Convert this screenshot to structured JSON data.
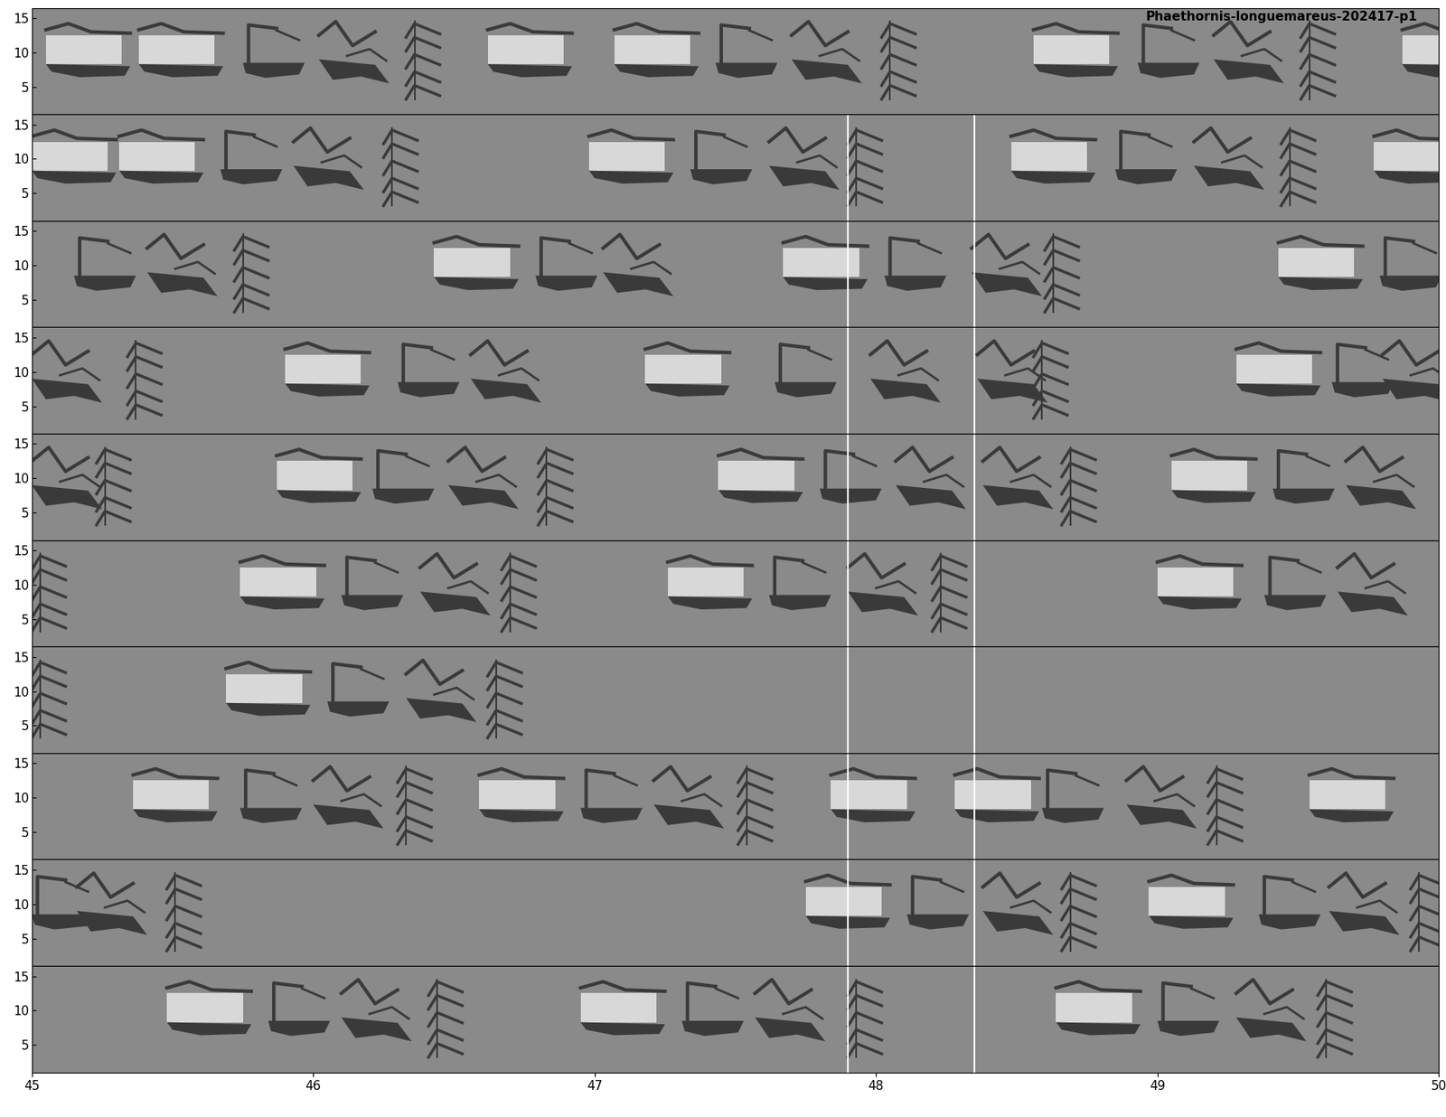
{
  "chart_data": {
    "type": "spectrogram",
    "title": "Phaethornis-longuemareus-202417-p1",
    "xlim": [
      45,
      50
    ],
    "xticks": [
      45,
      46,
      47,
      48,
      49,
      50
    ],
    "ylim": [
      1,
      16.5
    ],
    "yticks": [
      5,
      10,
      15
    ],
    "rows": [
      {
        "box": [
          45.05,
          45.38,
          46.62,
          47.07,
          48.56,
          49.87
        ],
        "hook": [
          45.75,
          47.43,
          48.93
        ],
        "knot": [
          46.02,
          47.7,
          49.2
        ],
        "tree": [
          46.33,
          48.02,
          49.51
        ],
        "markers": []
      },
      {
        "box": [
          45.0,
          45.31,
          46.98,
          48.48,
          49.77
        ],
        "hook": [
          45.67,
          47.34,
          48.85
        ],
        "knot": [
          45.93,
          47.62,
          49.13
        ],
        "tree": [
          46.25,
          47.9,
          49.44
        ],
        "markers": [
          47.9,
          48.35
        ]
      },
      {
        "box": [
          46.43,
          47.67,
          49.43
        ],
        "hook": [
          45.15,
          46.79,
          48.03,
          49.79
        ],
        "knot": [
          45.41,
          47.03,
          48.34
        ],
        "tree": [
          45.72,
          48.6
        ],
        "markers": [
          47.9,
          48.35
        ]
      },
      {
        "box": [
          45.9,
          47.18,
          49.28
        ],
        "hook": [
          46.3,
          47.64,
          49.62
        ],
        "knot": [
          45.0,
          46.56,
          47.98,
          48.36,
          49.8
        ],
        "tree": [
          45.34,
          48.56
        ],
        "markers": [
          47.9,
          48.35
        ]
      },
      {
        "box": [
          45.87,
          47.44,
          49.05
        ],
        "hook": [
          46.21,
          47.8,
          49.41
        ],
        "knot": [
          45.0,
          46.48,
          48.07,
          48.38,
          49.67
        ],
        "tree": [
          45.23,
          46.8,
          48.66
        ],
        "markers": [
          47.9,
          48.35
        ]
      },
      {
        "box": [
          45.74,
          47.26,
          49.0
        ],
        "hook": [
          46.1,
          47.62,
          49.38
        ],
        "knot": [
          46.38,
          47.9,
          49.64
        ],
        "tree": [
          45.0,
          46.67,
          48.2
        ],
        "markers": [
          47.9,
          48.35
        ]
      },
      {
        "box": [
          45.69
        ],
        "hook": [
          46.05
        ],
        "knot": [
          46.33
        ],
        "tree": [
          45.0,
          46.62
        ],
        "markers": [
          47.9,
          48.35
        ]
      },
      {
        "box": [
          45.36,
          46.59,
          47.84,
          48.28,
          49.54
        ],
        "hook": [
          45.74,
          46.95,
          48.59
        ],
        "knot": [
          46.0,
          47.21,
          48.89
        ],
        "tree": [
          46.3,
          47.51,
          49.18
        ],
        "markers": [
          47.9,
          48.35
        ]
      },
      {
        "box": [
          47.75,
          48.97
        ],
        "hook": [
          45.0,
          48.11,
          49.36
        ],
        "knot": [
          45.16,
          48.38,
          49.61
        ],
        "tree": [
          45.48,
          48.66,
          49.9
        ],
        "markers": [
          47.9,
          48.35
        ]
      },
      {
        "box": [
          45.48,
          46.95,
          48.64
        ],
        "hook": [
          45.84,
          47.31,
          49.0
        ],
        "knot": [
          46.1,
          47.57,
          49.28
        ],
        "tree": [
          46.41,
          47.9,
          49.57
        ],
        "markers": [
          47.9,
          48.35
        ]
      }
    ]
  }
}
